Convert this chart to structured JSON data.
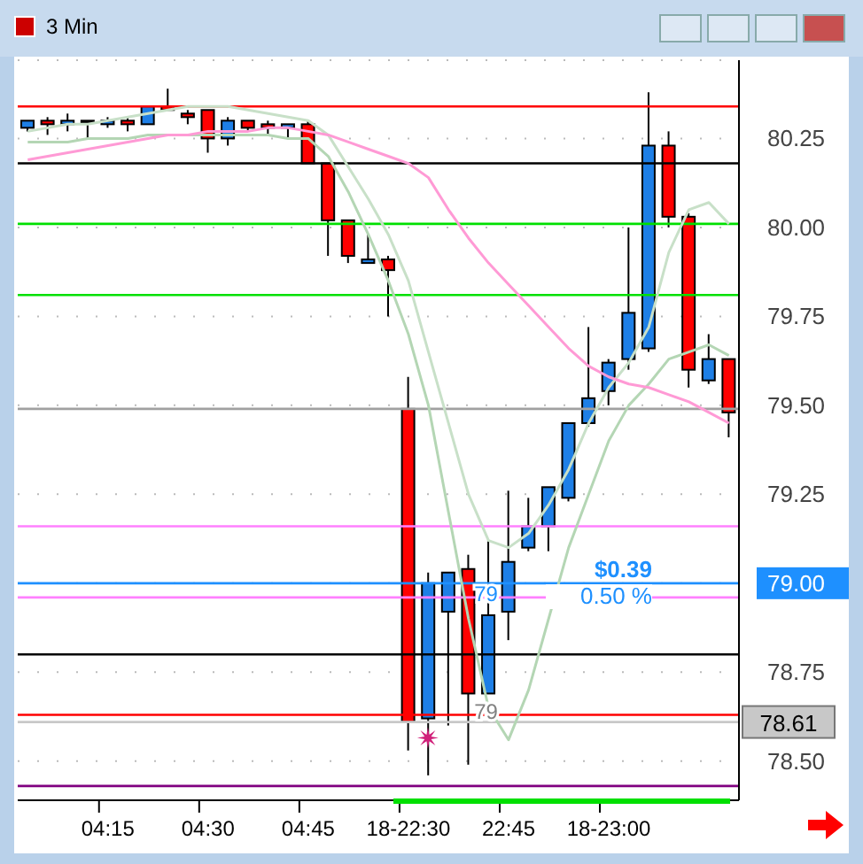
{
  "chart_data": {
    "type": "candlestick",
    "title": "3 Min",
    "categories": [
      null,
      null,
      null,
      null,
      "04:15",
      null,
      null,
      null,
      null,
      "04:30",
      null,
      null,
      null,
      null,
      "04:45",
      null,
      null,
      null,
      null,
      "18-22:30",
      null,
      null,
      null,
      null,
      "22:45",
      null,
      null,
      null,
      null,
      "18-23:00",
      null,
      null,
      null,
      null,
      null,
      null
    ],
    "ohlc": [
      [
        80.28,
        80.3,
        80.27,
        80.3
      ],
      [
        80.3,
        80.31,
        80.26,
        80.29
      ],
      [
        80.29,
        80.32,
        80.27,
        80.3
      ],
      [
        80.3,
        80.3,
        80.25,
        80.3
      ],
      [
        80.29,
        80.31,
        80.28,
        80.3
      ],
      [
        80.3,
        80.31,
        80.27,
        80.29
      ],
      [
        80.29,
        80.34,
        80.29,
        80.34
      ],
      [
        80.34,
        80.39,
        80.33,
        80.33
      ],
      [
        80.32,
        80.33,
        80.29,
        80.31
      ],
      [
        80.33,
        80.33,
        80.21,
        80.25
      ],
      [
        80.25,
        80.31,
        80.23,
        80.3
      ],
      [
        80.3,
        80.3,
        80.27,
        80.28
      ],
      [
        80.29,
        80.3,
        80.26,
        80.28
      ],
      [
        80.28,
        80.29,
        80.25,
        80.29
      ],
      [
        80.29,
        80.3,
        80.18,
        80.18
      ],
      [
        80.18,
        80.18,
        79.92,
        80.02
      ],
      [
        80.02,
        80.02,
        79.9,
        79.92
      ],
      [
        79.9,
        79.98,
        79.9,
        79.91
      ],
      [
        79.91,
        79.92,
        79.75,
        79.88
      ],
      [
        79.49,
        79.58,
        78.53,
        78.61
      ],
      [
        78.62,
        79.03,
        78.46,
        79.0
      ],
      [
        78.92,
        79.03,
        78.6,
        79.03
      ],
      [
        79.04,
        79.08,
        78.49,
        78.69
      ],
      [
        78.69,
        79.12,
        78.69,
        78.91
      ],
      [
        78.92,
        79.26,
        78.84,
        79.06
      ],
      [
        79.1,
        79.24,
        79.09,
        79.16
      ],
      [
        79.16,
        79.27,
        79.09,
        79.27
      ],
      [
        79.24,
        79.45,
        79.23,
        79.45
      ],
      [
        79.45,
        79.72,
        79.44,
        79.52
      ],
      [
        79.54,
        79.63,
        79.5,
        79.62
      ],
      [
        79.63,
        80.0,
        79.6,
        79.76
      ],
      [
        79.66,
        80.38,
        79.65,
        80.23
      ],
      [
        80.23,
        80.27,
        80.0,
        80.03
      ],
      [
        80.03,
        80.04,
        79.55,
        79.6
      ],
      [
        79.57,
        79.7,
        79.56,
        79.63
      ],
      [
        79.63,
        79.63,
        79.41,
        79.48
      ]
    ],
    "colors": [
      "#1e7fe6",
      "#ff0000",
      "#1e7fe6",
      "#1e7fe6",
      "#1e7fe6",
      "#ff0000",
      "#1e7fe6",
      "#ff0000",
      "#ff0000",
      "#ff0000",
      "#1e7fe6",
      "#ff0000",
      "#ff0000",
      "#1e7fe6",
      "#ff0000",
      "#ff0000",
      "#ff0000",
      "#1e7fe6",
      "#ff0000",
      "#ff0000",
      "#1e7fe6",
      "#1e7fe6",
      "#ff0000",
      "#1e7fe6",
      "#1e7fe6",
      "#1e7fe6",
      "#1e7fe6",
      "#1e7fe6",
      "#1e7fe6",
      "#1e7fe6",
      "#1e7fe6",
      "#1e7fe6",
      "#ff0000",
      "#ff0000",
      "#1e7fe6",
      "#ff0000"
    ],
    "series": [
      {
        "type": "line",
        "color": "#c8e0c8",
        "values": [
          80.27,
          80.28,
          80.29,
          80.29,
          80.3,
          80.31,
          80.32,
          80.33,
          80.34,
          80.34,
          80.34,
          80.33,
          80.32,
          80.31,
          80.3,
          80.26,
          80.17,
          80.08,
          79.98,
          79.85,
          79.65,
          79.45,
          79.25,
          79.12,
          79.1,
          79.14,
          79.22,
          79.32,
          79.45,
          79.55,
          79.62,
          79.72,
          79.93,
          80.05,
          80.07,
          80.01
        ]
      },
      {
        "type": "line",
        "color": "#b4d6b4",
        "values": [
          80.24,
          80.24,
          80.24,
          80.25,
          80.25,
          80.25,
          80.26,
          80.26,
          80.26,
          80.26,
          80.26,
          80.26,
          80.26,
          80.25,
          80.25,
          80.2,
          80.1,
          79.98,
          79.85,
          79.7,
          79.5,
          79.2,
          78.9,
          78.65,
          78.56,
          78.7,
          78.9,
          79.1,
          79.25,
          79.4,
          79.5,
          79.56,
          79.63,
          79.65,
          79.67,
          79.64
        ]
      },
      {
        "type": "line",
        "color": "#ff9ad5",
        "values": [
          80.19,
          80.2,
          80.21,
          80.22,
          80.23,
          80.24,
          80.25,
          80.26,
          80.26,
          80.27,
          80.27,
          80.27,
          80.28,
          80.28,
          80.27,
          80.26,
          80.24,
          80.22,
          80.2,
          80.18,
          80.14,
          80.05,
          79.97,
          79.9,
          79.84,
          79.78,
          79.72,
          79.66,
          79.61,
          79.58,
          79.56,
          79.55,
          79.53,
          79.51,
          79.48,
          79.45
        ]
      }
    ],
    "ylim": [
      78.39,
      80.47
    ],
    "yticks": [
      {
        "value": 78.5,
        "label": "78.50"
      },
      {
        "value": 78.75,
        "label": "78.75"
      },
      {
        "value": 79,
        "label": "79.00"
      },
      {
        "value": 79.25,
        "label": "79.25"
      },
      {
        "value": 79.5,
        "label": "79.50"
      },
      {
        "value": 79.75,
        "label": "79.75"
      },
      {
        "value": 80,
        "label": "80.00"
      },
      {
        "value": 80.25,
        "label": "80.25"
      }
    ],
    "grid": true,
    "ref_lines": [
      {
        "axis": "y",
        "value": 80.34,
        "color": "#ff0000"
      },
      {
        "axis": "y",
        "value": 80.18,
        "color": "#000000"
      },
      {
        "axis": "y",
        "value": 80.01,
        "color": "#00e000"
      },
      {
        "axis": "y",
        "value": 79.81,
        "color": "#00e000"
      },
      {
        "axis": "y",
        "value": 79.49,
        "color": "#a0a0a0"
      },
      {
        "axis": "y",
        "value": 79.16,
        "color": "#ff80ff"
      },
      {
        "axis": "y",
        "value": 78.96,
        "color": "#ff80ff"
      },
      {
        "axis": "y",
        "value": 78.8,
        "color": "#000000"
      },
      {
        "axis": "y",
        "value": 78.63,
        "color": "#ff0000"
      },
      {
        "axis": "y",
        "value": 78.43,
        "color": "#800080"
      },
      {
        "axis": "y",
        "value": 79.0,
        "color": "#1e90ff"
      },
      {
        "axis": "y",
        "value": 78.61,
        "color": "#c8c8c8",
        "label": "78.61"
      }
    ],
    "annotations": [
      "$0.39",
      "0.50 %",
      {
        "text": "79",
        "y": 79.0
      },
      {
        "text": "79",
        "y": 78.61
      }
    ]
  }
}
